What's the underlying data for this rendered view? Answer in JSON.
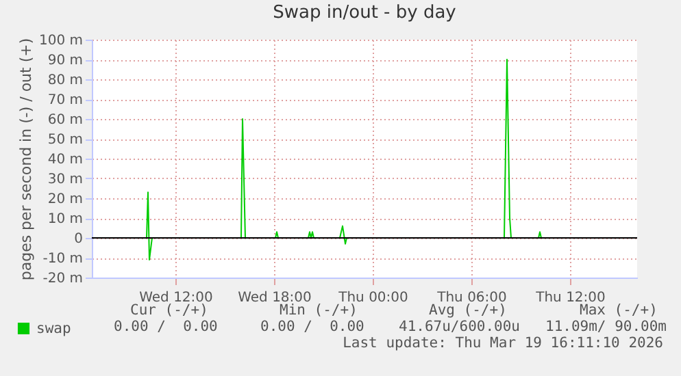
{
  "chart_data": {
    "type": "line",
    "title": "Swap in/out - by day",
    "ylabel": "pages per second in (-) / out (+)",
    "x": [
      "2026-03-18T06:55",
      "2026-03-18T10:15",
      "2026-03-18T10:20",
      "2026-03-18T10:25",
      "2026-03-18T10:35",
      "2026-03-18T16:00",
      "2026-03-18T16:05",
      "2026-03-18T16:15",
      "2026-03-18T18:05",
      "2026-03-18T18:10",
      "2026-03-18T18:15",
      "2026-03-18T20:05",
      "2026-03-18T20:10",
      "2026-03-18T20:15",
      "2026-03-18T20:20",
      "2026-03-18T20:25",
      "2026-03-18T22:00",
      "2026-03-18T22:10",
      "2026-03-18T22:20",
      "2026-03-18T22:25",
      "2026-03-19T08:00",
      "2026-03-19T08:10",
      "2026-03-19T08:20",
      "2026-03-19T08:25",
      "2026-03-19T10:05",
      "2026-03-19T10:10",
      "2026-03-19T10:15",
      "2026-03-19T16:05"
    ],
    "series": [
      {
        "name": "swap",
        "color": "#00cc00",
        "values": [
          0,
          0,
          23,
          -11,
          0,
          0,
          60,
          0,
          0,
          3,
          0,
          0,
          3,
          0,
          3,
          0,
          0,
          6,
          -3,
          0,
          0,
          90,
          10,
          0,
          0,
          3,
          0,
          0
        ]
      }
    ],
    "xlim": [
      "2026-03-18T06:55",
      "2026-03-19T16:05"
    ],
    "xticks": [
      {
        "value": "2026-03-18T12:00",
        "label": "Wed 12:00"
      },
      {
        "value": "2026-03-18T18:00",
        "label": "Wed 18:00"
      },
      {
        "value": "2026-03-19T00:00",
        "label": "Thu 00:00"
      },
      {
        "value": "2026-03-19T06:00",
        "label": "Thu 06:00"
      },
      {
        "value": "2026-03-19T12:00",
        "label": "Thu 12:00"
      }
    ],
    "ylim": [
      -20,
      100
    ],
    "yticks": [
      {
        "value": -20,
        "label": "-20 m"
      },
      {
        "value": -10,
        "label": "-10 m"
      },
      0,
      {
        "value": 10,
        "label": "10 m"
      },
      {
        "value": 20,
        "label": "20 m"
      },
      {
        "value": 30,
        "label": "30 m"
      },
      {
        "value": 40,
        "label": "40 m"
      },
      {
        "value": 50,
        "label": "50 m"
      },
      {
        "value": 60,
        "label": "60 m"
      },
      {
        "value": 70,
        "label": "70 m"
      },
      {
        "value": 80,
        "label": "80 m"
      },
      {
        "value": 90,
        "label": "90 m"
      },
      {
        "value": 100,
        "label": "100 m"
      }
    ],
    "ref_lines": [
      {
        "axis": "y",
        "value": 0,
        "color": "#000000"
      }
    ],
    "grid": true,
    "legend": "bottom left",
    "marker": "none",
    "line_style": "solid",
    "annotations": [
      "Cur (-/+)",
      "Min (-/+)",
      "Avg (-/+)",
      "Max (-/+)",
      "0.00 /  0.00",
      "0.00 /  0.00",
      "41.67u/600.00u",
      "11.09m/ 90.00m",
      "Last update: Thu Mar 19 16:11:10 2026"
    ]
  }
}
